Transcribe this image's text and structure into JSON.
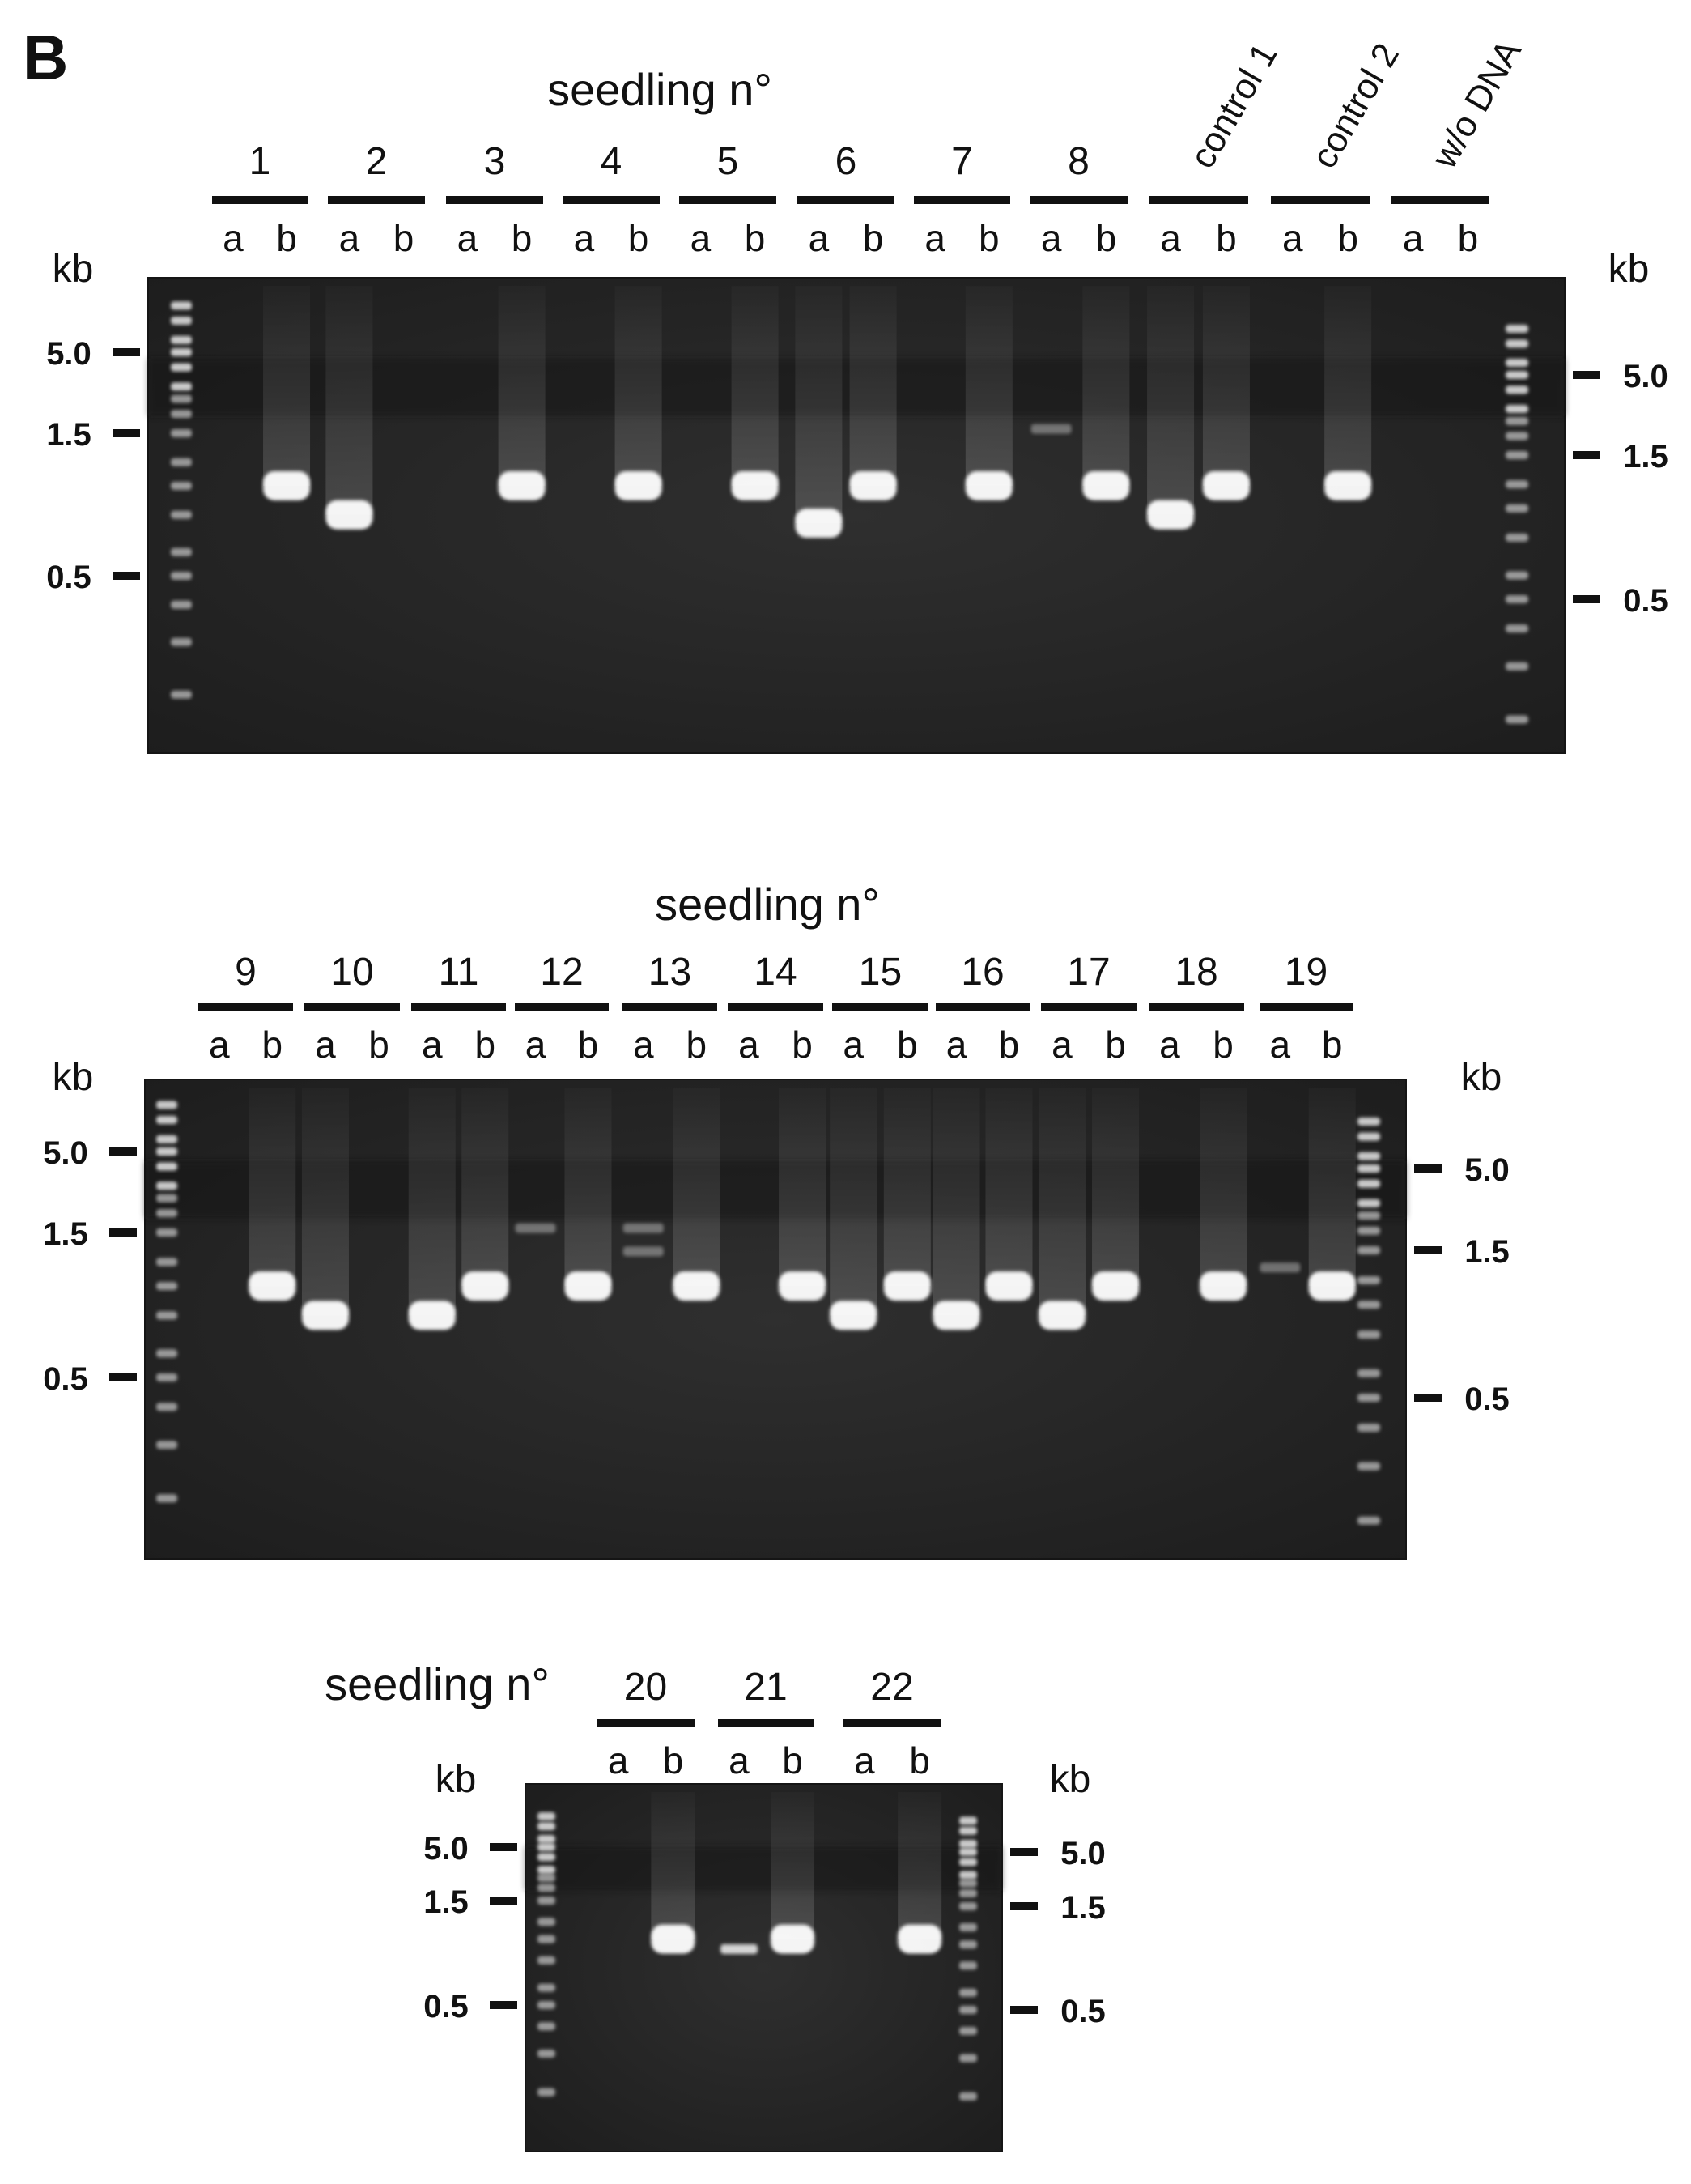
{
  "panel_label": "B",
  "ladder_labels": [
    "5.0",
    "1.5",
    "0.5"
  ],
  "kb_label": "kb",
  "panels": [
    {
      "header": "seedling n°",
      "groups": [
        {
          "label": "1",
          "rotated": false,
          "lanes": {
            "a": [],
            "b": [
              {
                "size": 1.0,
                "intensity": 1.0
              }
            ]
          }
        },
        {
          "label": "2",
          "rotated": false,
          "lanes": {
            "a": [
              {
                "size": 0.8,
                "intensity": 1.0
              }
            ],
            "b": []
          }
        },
        {
          "label": "3",
          "rotated": false,
          "lanes": {
            "a": [],
            "b": [
              {
                "size": 1.0,
                "intensity": 1.0
              }
            ]
          }
        },
        {
          "label": "4",
          "rotated": false,
          "lanes": {
            "a": [],
            "b": [
              {
                "size": 1.0,
                "intensity": 1.0
              }
            ]
          }
        },
        {
          "label": "5",
          "rotated": false,
          "lanes": {
            "a": [],
            "b": [
              {
                "size": 1.0,
                "intensity": 1.0
              }
            ]
          }
        },
        {
          "label": "6",
          "rotated": false,
          "lanes": {
            "a": [
              {
                "size": 0.75,
                "intensity": 1.0
              }
            ],
            "b": [
              {
                "size": 1.0,
                "intensity": 1.0
              }
            ]
          }
        },
        {
          "label": "7",
          "rotated": false,
          "lanes": {
            "a": [],
            "b": [
              {
                "size": 1.0,
                "intensity": 1.0
              }
            ]
          }
        },
        {
          "label": "8",
          "rotated": false,
          "lanes": {
            "a": [
              {
                "size": 1.6,
                "intensity": 0.35
              }
            ],
            "b": [
              {
                "size": 1.0,
                "intensity": 1.0
              }
            ]
          }
        },
        {
          "label": "control 1",
          "rotated": true,
          "lanes": {
            "a": [
              {
                "size": 0.8,
                "intensity": 1.0
              }
            ],
            "b": [
              {
                "size": 1.0,
                "intensity": 1.0
              }
            ]
          }
        },
        {
          "label": "control 2",
          "rotated": true,
          "lanes": {
            "a": [],
            "b": [
              {
                "size": 1.0,
                "intensity": 1.0
              }
            ]
          }
        },
        {
          "label": "w/o DNA",
          "rotated": true,
          "lanes": {
            "a": [],
            "b": []
          }
        }
      ]
    },
    {
      "header": "seedling n°",
      "groups": [
        {
          "label": "9",
          "rotated": false,
          "lanes": {
            "a": [],
            "b": [
              {
                "size": 1.0,
                "intensity": 1.0
              }
            ]
          }
        },
        {
          "label": "10",
          "rotated": false,
          "lanes": {
            "a": [
              {
                "size": 0.8,
                "intensity": 1.0
              }
            ],
            "b": []
          }
        },
        {
          "label": "11",
          "rotated": false,
          "lanes": {
            "a": [
              {
                "size": 0.8,
                "intensity": 1.0
              }
            ],
            "b": [
              {
                "size": 1.0,
                "intensity": 1.0
              }
            ]
          }
        },
        {
          "label": "12",
          "rotated": false,
          "lanes": {
            "a": [
              {
                "size": 1.6,
                "intensity": 0.35
              }
            ],
            "b": [
              {
                "size": 1.0,
                "intensity": 1.0
              }
            ]
          }
        },
        {
          "label": "13",
          "rotated": false,
          "lanes": {
            "a": [
              {
                "size": 1.6,
                "intensity": 0.35
              },
              {
                "size": 1.3,
                "intensity": 0.35
              }
            ],
            "b": [
              {
                "size": 1.0,
                "intensity": 1.0
              }
            ]
          }
        },
        {
          "label": "14",
          "rotated": false,
          "lanes": {
            "a": [],
            "b": [
              {
                "size": 1.0,
                "intensity": 1.0
              }
            ]
          }
        },
        {
          "label": "15",
          "rotated": false,
          "lanes": {
            "a": [
              {
                "size": 0.8,
                "intensity": 1.0
              }
            ],
            "b": [
              {
                "size": 1.0,
                "intensity": 1.0
              }
            ]
          }
        },
        {
          "label": "16",
          "rotated": false,
          "lanes": {
            "a": [
              {
                "size": 0.8,
                "intensity": 1.0
              }
            ],
            "b": [
              {
                "size": 1.0,
                "intensity": 1.0
              }
            ]
          }
        },
        {
          "label": "17",
          "rotated": false,
          "lanes": {
            "a": [
              {
                "size": 0.8,
                "intensity": 1.0
              }
            ],
            "b": [
              {
                "size": 1.0,
                "intensity": 1.0
              }
            ]
          }
        },
        {
          "label": "18",
          "rotated": false,
          "lanes": {
            "a": [],
            "b": [
              {
                "size": 1.0,
                "intensity": 1.0
              }
            ]
          }
        },
        {
          "label": "19",
          "rotated": false,
          "lanes": {
            "a": [
              {
                "size": 1.15,
                "intensity": 0.35
              }
            ],
            "b": [
              {
                "size": 1.0,
                "intensity": 1.0
              }
            ]
          }
        }
      ]
    },
    {
      "header": "seedling n°",
      "groups": [
        {
          "label": "20",
          "rotated": false,
          "lanes": {
            "a": [],
            "b": [
              {
                "size": 1.0,
                "intensity": 1.0
              }
            ]
          }
        },
        {
          "label": "21",
          "rotated": false,
          "lanes": {
            "a": [
              {
                "size": 0.9,
                "intensity": 0.8
              }
            ],
            "b": [
              {
                "size": 1.0,
                "intensity": 1.0
              }
            ]
          }
        },
        {
          "label": "22",
          "rotated": false,
          "lanes": {
            "a": [],
            "b": [
              {
                "size": 1.0,
                "intensity": 1.0
              }
            ]
          }
        }
      ]
    }
  ]
}
